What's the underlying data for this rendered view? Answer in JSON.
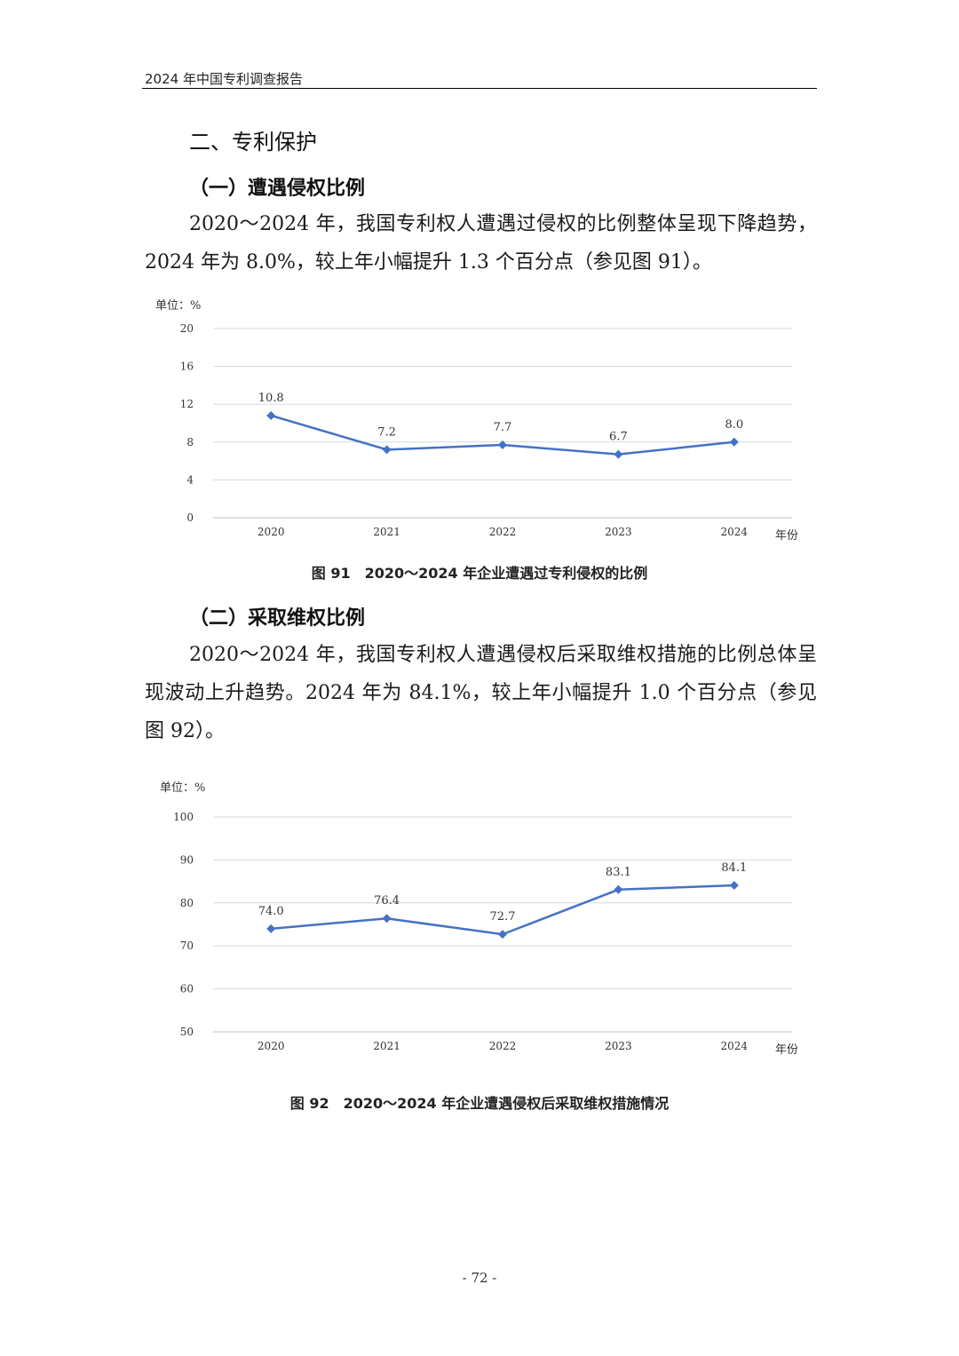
{
  "header": {
    "running_title": "2024 年中国专利调查报告"
  },
  "section": {
    "title": "二、专利保护"
  },
  "sub1": {
    "title": "（一）遭遇侵权比例",
    "paragraph": "2020～2024 年，我国专利权人遭遇过侵权的比例整体呈现下降趋势，2024 年为 8.0%，较上年小幅提升 1.3 个百分点（参见图 91）。"
  },
  "sub2": {
    "title": "（二）采取维权比例",
    "paragraph": "2020～2024 年，我国专利权人遭遇侵权后采取维权措施的比例总体呈现波动上升趋势。2024 年为 84.1%，较上年小幅提升 1.0 个百分点（参见图 92）。"
  },
  "chart_data": [
    {
      "type": "line",
      "unit_label": "单位：%",
      "x_axis_name": "年份",
      "categories": [
        "2020",
        "2021",
        "2022",
        "2023",
        "2024"
      ],
      "values": [
        10.8,
        7.2,
        7.7,
        6.7,
        8.0
      ],
      "value_labels": [
        "10.8",
        "7.2",
        "7.7",
        "6.7",
        "8.0"
      ],
      "ylim": [
        0,
        20
      ],
      "yticks": [
        "0",
        "4",
        "8",
        "12",
        "16",
        "20"
      ],
      "grid": true,
      "line_color": "#4472C4",
      "marker": "diamond",
      "caption": "图 91　2020～2024 年企业遭遇过专利侵权的比例"
    },
    {
      "type": "line",
      "unit_label": "单位：%",
      "x_axis_name": "年份",
      "categories": [
        "2020",
        "2021",
        "2022",
        "2023",
        "2024"
      ],
      "values": [
        74.0,
        76.4,
        72.7,
        83.1,
        84.1
      ],
      "value_labels": [
        "74.0",
        "76.4",
        "72.7",
        "83.1",
        "84.1"
      ],
      "ylim": [
        50,
        100
      ],
      "yticks": [
        "50",
        "60",
        "70",
        "80",
        "90",
        "100"
      ],
      "grid": true,
      "line_color": "#4472C4",
      "marker": "diamond",
      "caption": "图 92　2020～2024 年企业遭遇侵权后采取维权措施情况"
    }
  ],
  "footer": {
    "page_number": "- 72 -"
  }
}
